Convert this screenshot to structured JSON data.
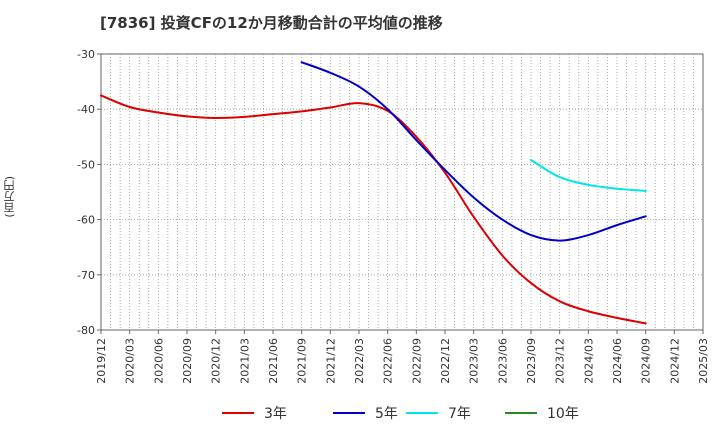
{
  "chart_data": {
    "type": "line",
    "title": "[7836]  投資CFの12か月移動合計の平均値の推移",
    "ylabel": "(百万円)",
    "xlabel": "",
    "ylim": [
      -80,
      -30
    ],
    "yticks": [
      -30,
      -40,
      -50,
      -60,
      -70,
      -80
    ],
    "xticks": [
      "2019/12",
      "2020/03",
      "2020/06",
      "2020/09",
      "2020/12",
      "2021/03",
      "2021/06",
      "2021/09",
      "2021/12",
      "2022/03",
      "2022/06",
      "2022/09",
      "2022/12",
      "2023/03",
      "2023/06",
      "2023/09",
      "2023/12",
      "2024/03",
      "2024/06",
      "2024/09",
      "2024/12",
      "2025/03"
    ],
    "grid": true,
    "legend_position": "bottom",
    "series": [
      {
        "name": "3年",
        "color": "#dd0000",
        "x": [
          "2019/12",
          "2020/03",
          "2020/06",
          "2020/09",
          "2020/12",
          "2021/03",
          "2021/06",
          "2021/09",
          "2021/12",
          "2022/03",
          "2022/06",
          "2022/09",
          "2022/12",
          "2023/03",
          "2023/06",
          "2023/09",
          "2023/12",
          "2024/03",
          "2024/06",
          "2024/09"
        ],
        "values": [
          -37.5,
          -39.6,
          -40.6,
          -41.3,
          -41.6,
          -41.4,
          -40.9,
          -40.4,
          -39.7,
          -38.9,
          -40.3,
          -45.0,
          -51.5,
          -59.5,
          -66.5,
          -71.5,
          -74.8,
          -76.6,
          -77.8,
          -78.8
        ]
      },
      {
        "name": "5年",
        "color": "#0000cc",
        "x": [
          "2021/09",
          "2021/12",
          "2022/03",
          "2022/06",
          "2022/09",
          "2022/12",
          "2023/03",
          "2023/06",
          "2023/09",
          "2023/12",
          "2024/03",
          "2024/06",
          "2024/09"
        ],
        "values": [
          -31.5,
          -33.4,
          -35.9,
          -40.0,
          -45.6,
          -51.0,
          -56.0,
          -60.0,
          -62.8,
          -63.8,
          -62.8,
          -61.0,
          -59.4
        ]
      },
      {
        "name": "7年",
        "color": "#00e5e5",
        "x": [
          "2023/09",
          "2023/12",
          "2024/03",
          "2024/06",
          "2024/09"
        ],
        "values": [
          -49.2,
          -52.3,
          -53.7,
          -54.4,
          -54.8
        ]
      },
      {
        "name": "10年",
        "color": "#228b22",
        "x": [],
        "values": []
      }
    ]
  }
}
